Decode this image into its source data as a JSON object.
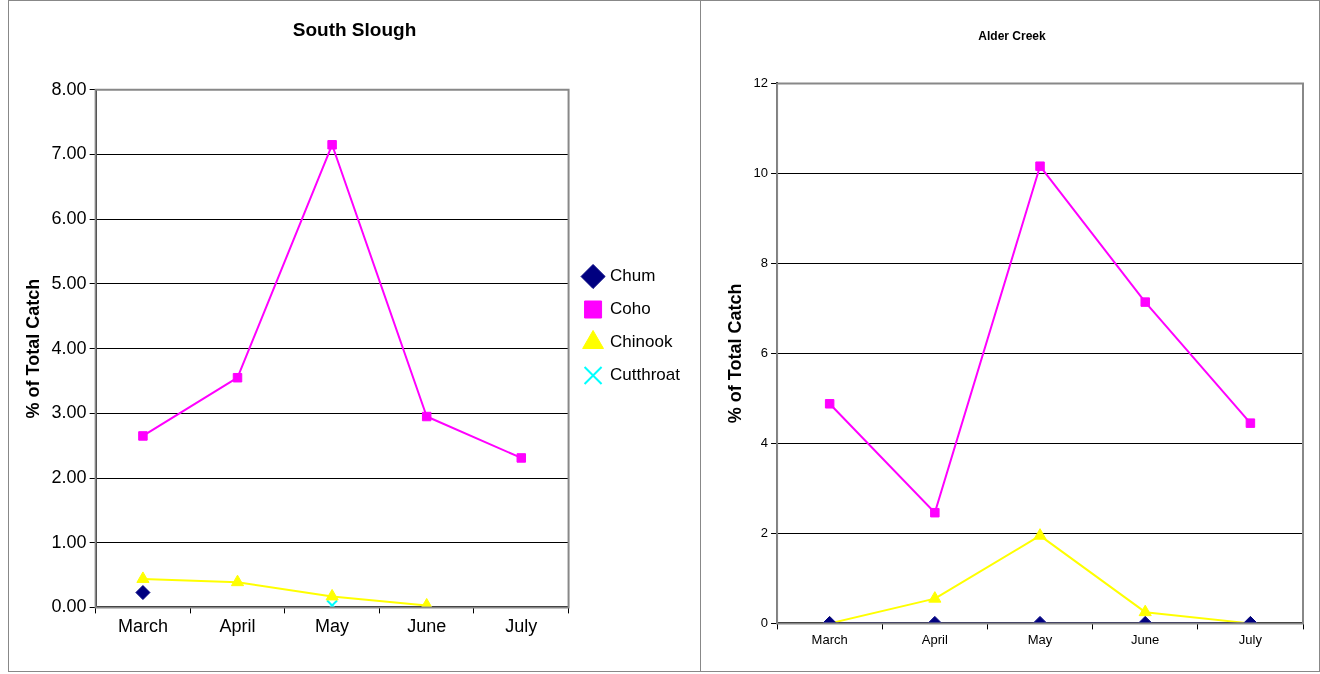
{
  "chart_data": [
    {
      "type": "line",
      "title": "South Slough",
      "ylabel": "% of Total Catch",
      "categories": [
        "March",
        "April",
        "May",
        "June",
        "July"
      ],
      "series": [
        {
          "name": "Chum",
          "color": "#000080",
          "marker": "diamond",
          "values": [
            0.23,
            null,
            null,
            null,
            null
          ]
        },
        {
          "name": "Coho",
          "color": "#ff00ff",
          "marker": "square",
          "values": [
            2.65,
            3.55,
            7.15,
            2.95,
            2.31
          ]
        },
        {
          "name": "Chinook",
          "color": "#ffff00",
          "marker": "triangle",
          "values": [
            0.44,
            0.39,
            0.17,
            0.03,
            null
          ]
        },
        {
          "name": "Cutthroat",
          "color": "#00ffff",
          "marker": "cross",
          "values": [
            null,
            null,
            0.03,
            null,
            null
          ]
        }
      ],
      "ylim": [
        0,
        8
      ],
      "yticks": [
        {
          "value": 0,
          "label": "0.00"
        },
        {
          "value": 1,
          "label": "1.00"
        },
        {
          "value": 2,
          "label": "2.00"
        },
        {
          "value": 3,
          "label": "3.00"
        },
        {
          "value": 4,
          "label": "4.00"
        },
        {
          "value": 5,
          "label": "5.00"
        },
        {
          "value": 6,
          "label": "6.00"
        },
        {
          "value": 7,
          "label": "7.00"
        },
        {
          "value": 8,
          "label": "8.00"
        }
      ],
      "grid": "y",
      "legend": "right",
      "line_style": "solid"
    },
    {
      "type": "line",
      "title": "Alder Creek",
      "ylabel": "% of Total Catch",
      "categories": [
        "March",
        "April",
        "May",
        "June",
        "July"
      ],
      "series": [
        {
          "color": "#000080",
          "marker": "diamond",
          "values": [
            0,
            0,
            0,
            0,
            0
          ]
        },
        {
          "color": "#ff00ff",
          "marker": "square",
          "values": [
            4.88,
            2.46,
            10.16,
            7.14,
            4.45
          ]
        },
        {
          "color": "#ffff00",
          "marker": "triangle",
          "values": [
            0,
            0.55,
            1.95,
            0.25,
            0
          ]
        }
      ],
      "ylim": [
        0,
        12
      ],
      "yticks": [
        0,
        2,
        4,
        6,
        8,
        10,
        12
      ],
      "grid": "y",
      "legend": false,
      "line_style": "solid"
    }
  ]
}
